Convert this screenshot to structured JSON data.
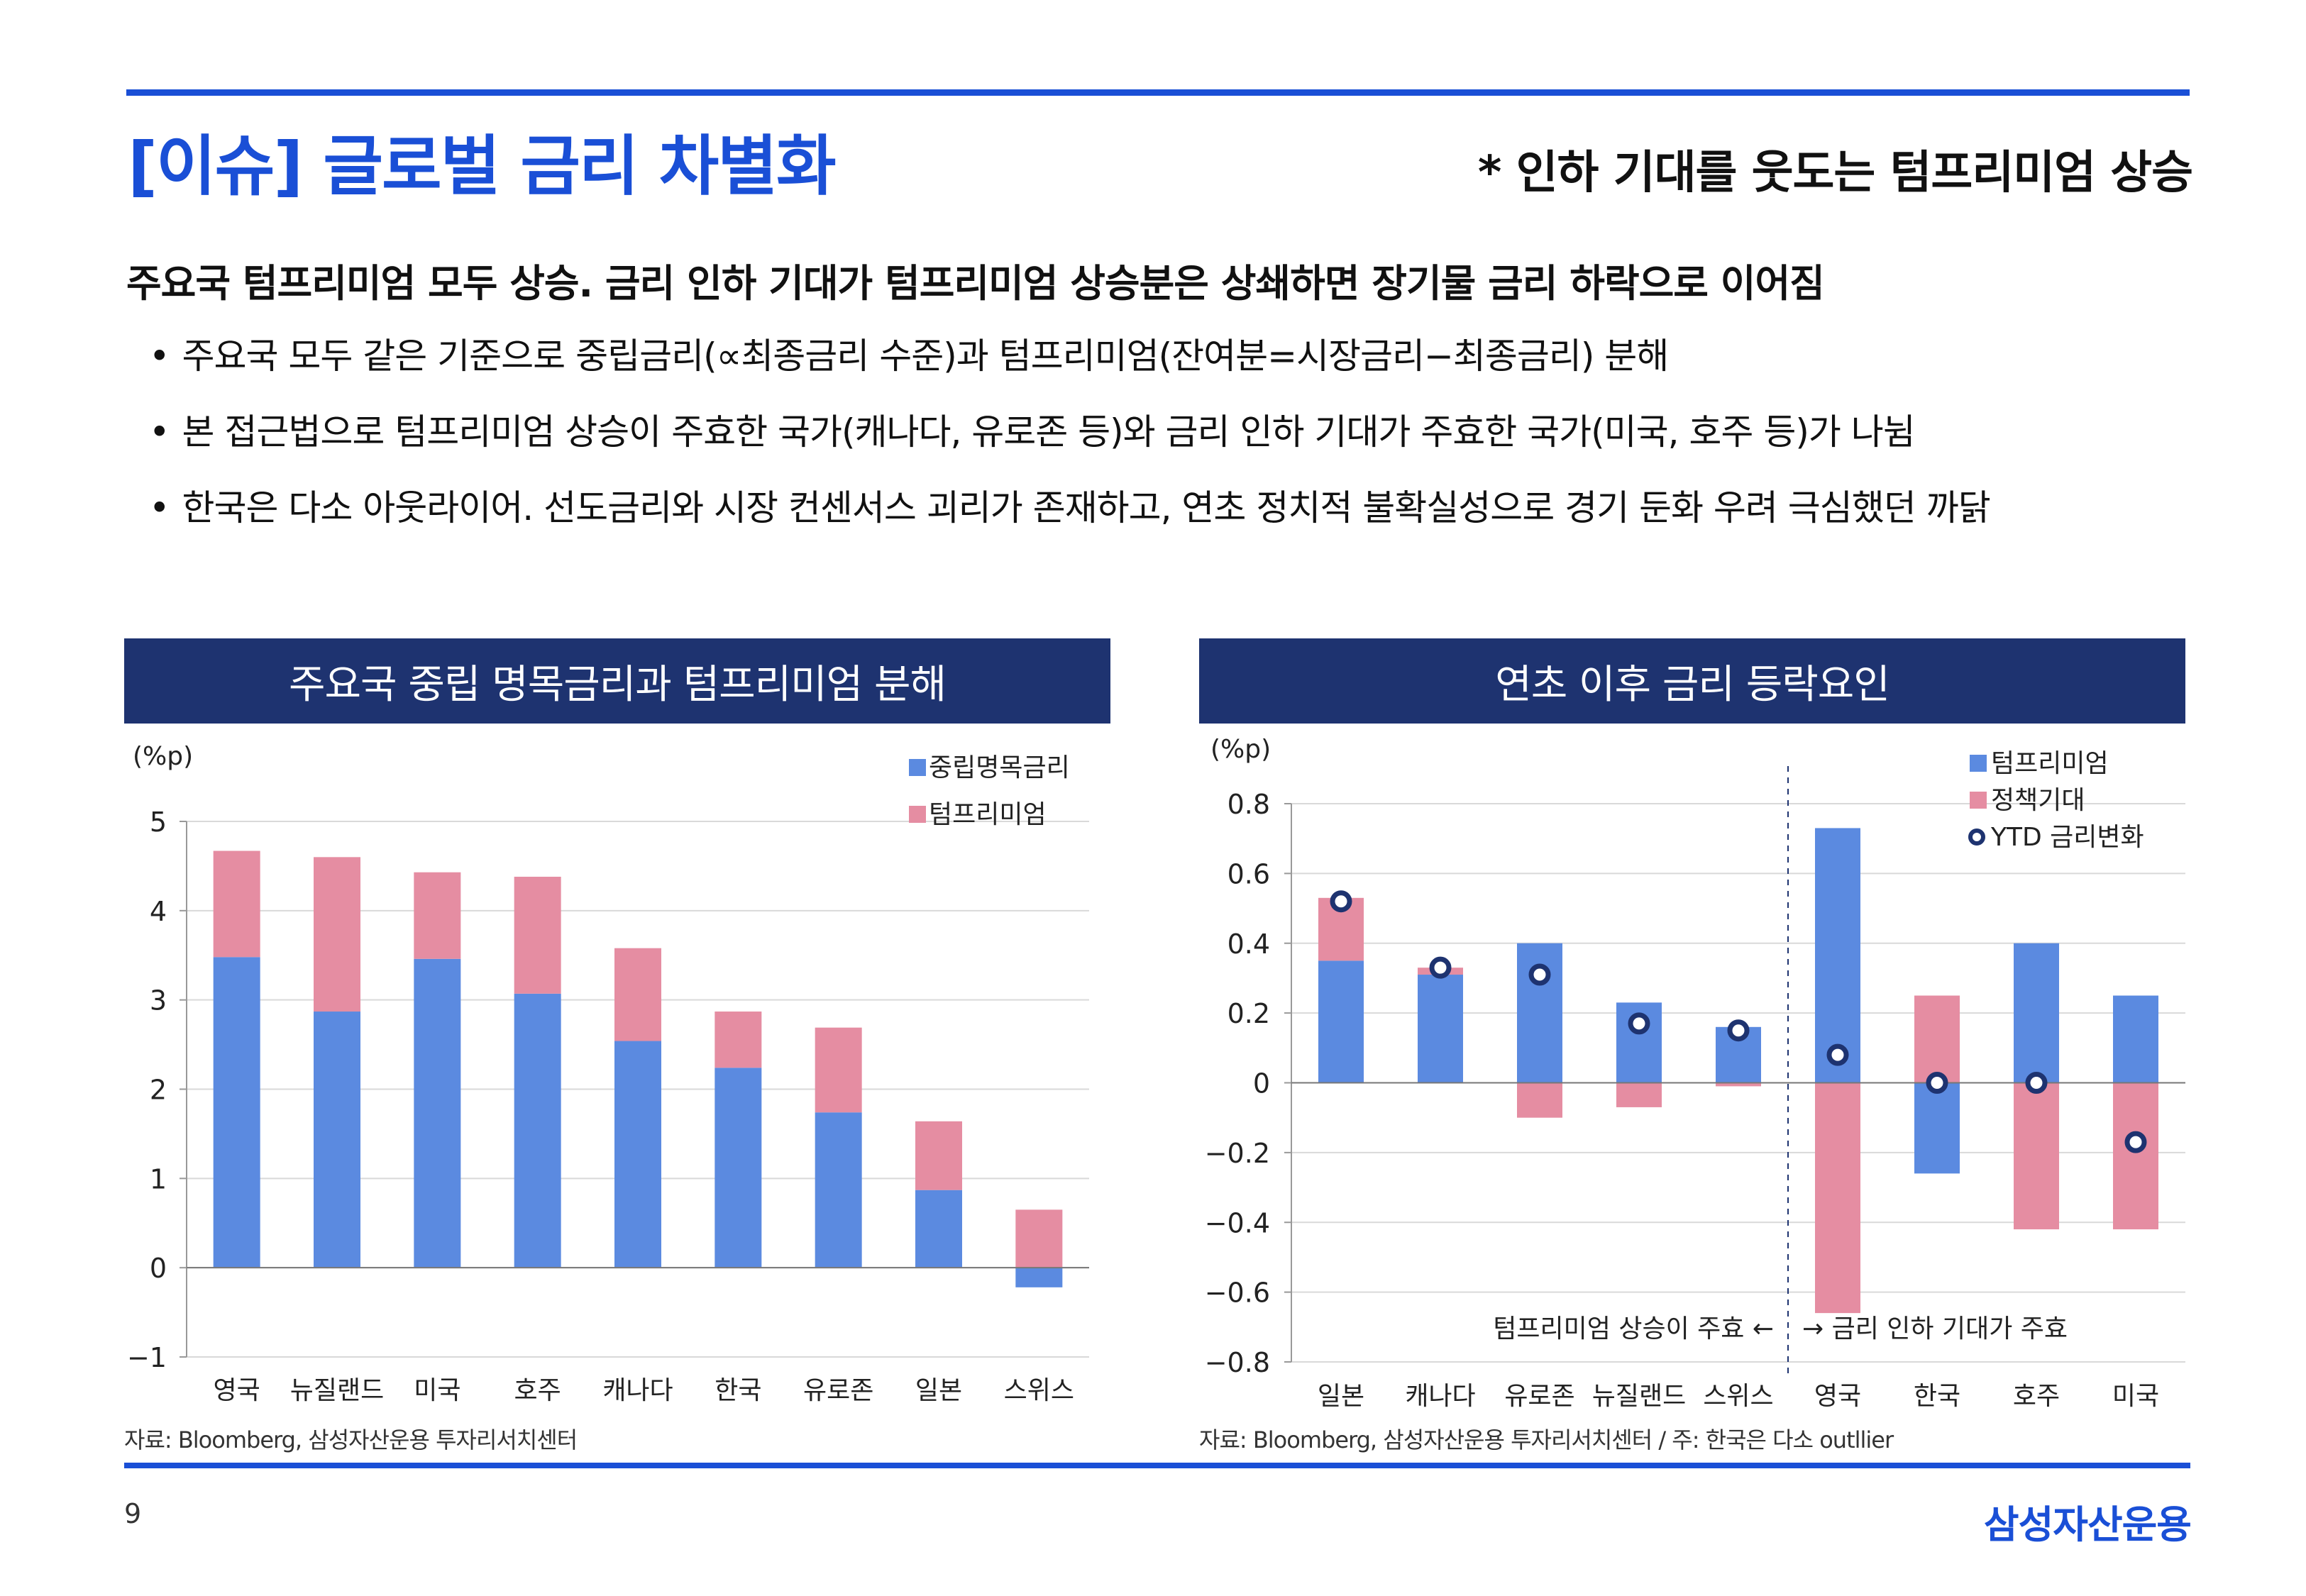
{
  "header": {
    "title": "[이슈] 글로벌 금리 차별화",
    "note": "* 인하 기대를 웃도는 텀프리미엄 상승"
  },
  "headline": "주요국 텀프리미엄 모두 상승. 금리 인하 기대가 텀프리미엄 상승분은 상쇄하면 장기물 금리 하락으로 이어짐",
  "bullets": [
    "주요국 모두 같은 기준으로 중립금리(∝최종금리 수준)과 텀프리미엄(잔여분=시장금리−최종금리) 분해",
    "본 접근법으로 텀프리미엄 상승이 주효한 국가(캐나다, 유로존 등)와 금리 인하 기대가 주효한 국가(미국, 호주 등)가 나뉨",
    "한국은 다소 아웃라이어. 선도금리와 시장 컨센서스 괴리가 존재하고, 연초 정치적 불확실성으로 경기 둔화 우려 극심했던 까닭"
  ],
  "colors": {
    "blue": "#5b8ae0",
    "pink": "#e58da2",
    "navy": "#1e3370",
    "accent": "#1a4fd6"
  },
  "chart_data": [
    {
      "type": "bar",
      "stacked": true,
      "title": "주요국 중립 명목금리과 텀프리미엄 분해",
      "ylabel": "(%p)",
      "ylim": [
        -1,
        5
      ],
      "yticks": [
        -1,
        0,
        1,
        2,
        3,
        4,
        5
      ],
      "categories": [
        "영국",
        "뉴질랜드",
        "미국",
        "호주",
        "캐나다",
        "한국",
        "유로존",
        "일본",
        "스위스"
      ],
      "series": [
        {
          "name": "중립명목금리",
          "color": "#5b8ae0",
          "values": [
            3.48,
            2.87,
            3.46,
            3.07,
            2.54,
            2.24,
            1.74,
            0.87,
            -0.22
          ]
        },
        {
          "name": "텀프리미엄",
          "color": "#e58da2",
          "values": [
            1.19,
            1.73,
            0.97,
            1.31,
            1.04,
            0.63,
            0.95,
            0.77,
            0.65
          ]
        }
      ],
      "legend": "top-right",
      "grid": true,
      "source": "자료: Bloomberg, 삼성자산운용 투자리서치센터"
    },
    {
      "type": "bar",
      "stacked": true,
      "title": "연초 이후 금리 등락요인",
      "ylabel": "(%p)",
      "ylim": [
        -0.8,
        0.8
      ],
      "yticks": [
        0.8,
        0.6,
        0.4,
        0.2,
        0,
        -0.2,
        -0.4,
        -0.6,
        -0.8
      ],
      "ytick_labels": [
        "0.8",
        "0.6",
        "0.4",
        "0.2",
        "0",
        "−0.2",
        "−0.4",
        "−0.6",
        "−0.8"
      ],
      "categories": [
        "일본",
        "캐나다",
        "유로존",
        "뉴질랜드",
        "스위스",
        "영국",
        "한국",
        "호주",
        "미국"
      ],
      "series": [
        {
          "name": "텀프리미엄",
          "color": "#5b8ae0",
          "values": [
            0.35,
            0.31,
            0.4,
            0.23,
            0.16,
            0.73,
            -0.26,
            0.4,
            0.25
          ]
        },
        {
          "name": "정책기대",
          "color": "#e58da2",
          "values": [
            0.18,
            0.02,
            -0.1,
            -0.07,
            -0.01,
            -0.66,
            0.25,
            -0.42,
            -0.42
          ]
        },
        {
          "name": "YTD 금리변화",
          "type": "scatter",
          "values": [
            0.52,
            0.33,
            0.31,
            0.17,
            0.15,
            0.08,
            0.0,
            0.0,
            -0.17
          ]
        }
      ],
      "annotations": [
        "텀프리미엄 상승이 주효 ←",
        "→ 금리 인하 기대가 주효"
      ],
      "divider_after_index": 4,
      "legend": "top-right",
      "grid": true,
      "source": "자료: Bloomberg, 삼성자산운용 투자리서치센터 / 주: 한국은 다소 outllier"
    }
  ],
  "footer": {
    "page": "9",
    "brand": "삼성자산운용"
  }
}
